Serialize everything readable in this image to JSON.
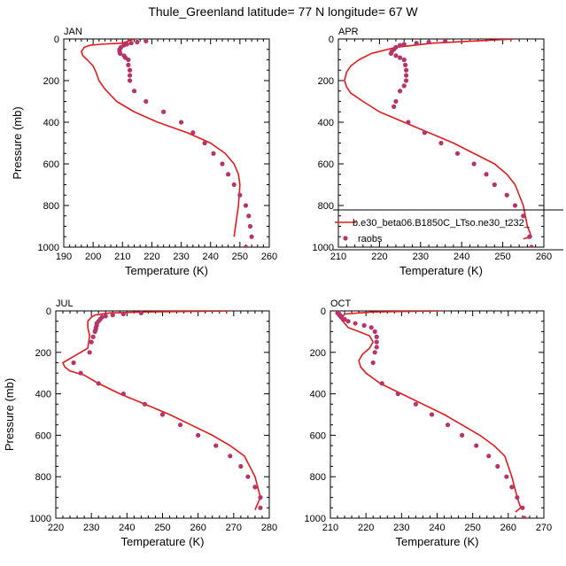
{
  "title": "Thule_Greenland  latitude= 77 N longitude= 67 W",
  "colors": {
    "model": "#e41a1c",
    "obs": "#b7346a",
    "axis": "#000000"
  },
  "legend": {
    "model_label": "b.e30_beta06.B1850C_LTso.ne30_t232_",
    "obs_label": "raobs"
  },
  "chart_data": [
    {
      "type": "line",
      "panel": "JAN",
      "xlabel": "Temperature (K)",
      "ylabel": "Pressure (mb)",
      "xlim": [
        190,
        260
      ],
      "ylim": [
        1000,
        0
      ],
      "xticks": [
        190,
        200,
        210,
        220,
        230,
        240,
        250,
        260
      ],
      "yticks": [
        0,
        200,
        400,
        600,
        800,
        1000
      ],
      "grid": false,
      "series": [
        {
          "role": "model",
          "style": "line",
          "x": [
            214,
            210,
            203,
            199,
            197,
            196,
            196.5,
            198,
            200,
            201,
            202,
            204,
            208,
            214,
            222,
            232,
            240,
            245,
            248,
            249.5,
            250,
            249.5,
            248.5,
            248
          ],
          "y": [
            0,
            20,
            25,
            30,
            40,
            60,
            80,
            100,
            130,
            160,
            200,
            240,
            300,
            350,
            400,
            450,
            500,
            550,
            600,
            650,
            700,
            800,
            900,
            950
          ]
        },
        {
          "role": "obs",
          "style": "markers",
          "x": [
            218,
            215,
            213,
            211.5,
            210.5,
            209.5,
            209,
            209,
            209.2,
            210.5,
            211,
            212,
            212,
            212.5,
            212.5,
            212.5,
            214,
            218,
            224,
            230,
            234,
            238,
            241,
            244,
            246,
            248,
            250,
            252,
            253,
            253.5,
            254,
            252
          ],
          "y": [
            10,
            15,
            20,
            25,
            30,
            40,
            50,
            60,
            70,
            80,
            90,
            100,
            125,
            150,
            175,
            200,
            250,
            300,
            350,
            400,
            450,
            500,
            550,
            600,
            650,
            700,
            750,
            800,
            850,
            900,
            950,
            1000
          ]
        }
      ]
    },
    {
      "type": "line",
      "panel": "APR",
      "xlabel": "Temperature (K)",
      "ylabel": "",
      "xlim": [
        210,
        260
      ],
      "ylim": [
        1000,
        0
      ],
      "xticks": [
        210,
        220,
        230,
        240,
        250,
        260
      ],
      "yticks": [
        0,
        200,
        400,
        600,
        800,
        1000
      ],
      "grid": false,
      "series": [
        {
          "role": "model",
          "style": "line",
          "x": [
            253,
            243,
            233,
            224,
            218,
            215,
            213,
            212,
            211.5,
            212,
            213,
            216,
            220,
            226,
            232,
            238,
            243,
            248,
            251,
            253,
            255,
            256,
            257,
            255
          ],
          "y": [
            0,
            10,
            20,
            40,
            70,
            100,
            130,
            160,
            200,
            230,
            260,
            300,
            350,
            400,
            450,
            500,
            550,
            600,
            650,
            700,
            800,
            900,
            950,
            960
          ]
        },
        {
          "role": "obs",
          "style": "markers",
          "x": [
            236,
            232,
            229,
            226,
            225,
            224,
            223.5,
            223,
            222.8,
            224,
            225,
            226,
            226.3,
            226.5,
            226.5,
            226.5,
            226,
            225,
            224,
            223.5,
            227,
            231,
            235,
            239,
            243,
            246,
            248,
            251,
            253,
            255,
            256.5,
            257
          ],
          "y": [
            10,
            15,
            20,
            25,
            30,
            40,
            50,
            60,
            70,
            80,
            90,
            100,
            125,
            150,
            175,
            200,
            225,
            250,
            300,
            325,
            400,
            450,
            500,
            550,
            600,
            650,
            700,
            750,
            800,
            850,
            950,
            1000
          ]
        }
      ]
    },
    {
      "type": "line",
      "panel": "JUL",
      "xlabel": "Temperature (K)",
      "ylabel": "Pressure (mb)",
      "xlim": [
        220,
        280
      ],
      "ylim": [
        1000,
        0
      ],
      "xticks": [
        220,
        230,
        240,
        250,
        260,
        270,
        280
      ],
      "yticks": [
        0,
        200,
        400,
        600,
        800,
        1000
      ],
      "grid": false,
      "series": [
        {
          "role": "model",
          "style": "line",
          "x": [
            269,
            245,
            235,
            231,
            230,
            229,
            229,
            229.5,
            229,
            224,
            222,
            222.5,
            224,
            228,
            232,
            238,
            245,
            252,
            258,
            264,
            269,
            273,
            276,
            277.5,
            276
          ],
          "y": [
            0,
            5,
            10,
            20,
            30,
            50,
            80,
            120,
            180,
            230,
            250,
            270,
            290,
            310,
            350,
            400,
            450,
            500,
            550,
            600,
            650,
            700,
            800,
            900,
            960
          ]
        },
        {
          "role": "obs",
          "style": "markers",
          "x": [
            244,
            239,
            236,
            234,
            233,
            232.5,
            232,
            231.5,
            231.5,
            231.3,
            231.2,
            231,
            230.5,
            230,
            229.5,
            225,
            227,
            232,
            239,
            245,
            250,
            255,
            260,
            265,
            269,
            272,
            274,
            276,
            277.5,
            277.5
          ],
          "y": [
            10,
            15,
            20,
            25,
            30,
            40,
            50,
            60,
            70,
            80,
            90,
            100,
            125,
            150,
            200,
            250,
            300,
            350,
            400,
            450,
            500,
            550,
            600,
            650,
            700,
            750,
            800,
            850,
            900,
            950
          ]
        }
      ]
    },
    {
      "type": "line",
      "panel": "OCT",
      "xlabel": "Temperature (K)",
      "ylabel": "",
      "xlim": [
        210,
        270
      ],
      "ylim": [
        1000,
        0
      ],
      "xticks": [
        210,
        220,
        230,
        240,
        250,
        260,
        270
      ],
      "yticks": [
        0,
        200,
        400,
        600,
        800,
        1000
      ],
      "grid": false,
      "series": [
        {
          "role": "model",
          "style": "line",
          "x": [
            241,
            222,
            214,
            213,
            215,
            218,
            221,
            222,
            221,
            219,
            218,
            218.5,
            220,
            224,
            230,
            236,
            242,
            247,
            252,
            256,
            259,
            261,
            262.5,
            263.5,
            262
          ],
          "y": [
            0,
            5,
            15,
            40,
            80,
            100,
            120,
            150,
            180,
            210,
            240,
            270,
            300,
            350,
            400,
            450,
            500,
            550,
            600,
            650,
            700,
            800,
            900,
            950,
            970
          ]
        },
        {
          "role": "obs",
          "style": "markers",
          "x": [
            212,
            212.5,
            212.5,
            213,
            213,
            214,
            215,
            217,
            219.5,
            221.5,
            222.5,
            223,
            223,
            223,
            222.5,
            222,
            224.5,
            229,
            234,
            238.5,
            243,
            247,
            251,
            254.5,
            257,
            259.5,
            261,
            262.5,
            264,
            264.5
          ],
          "y": [
            10,
            15,
            20,
            25,
            30,
            40,
            50,
            60,
            70,
            80,
            100,
            125,
            150,
            175,
            200,
            250,
            350,
            400,
            450,
            500,
            550,
            600,
            650,
            700,
            750,
            800,
            850,
            900,
            950,
            1000
          ]
        }
      ]
    }
  ]
}
